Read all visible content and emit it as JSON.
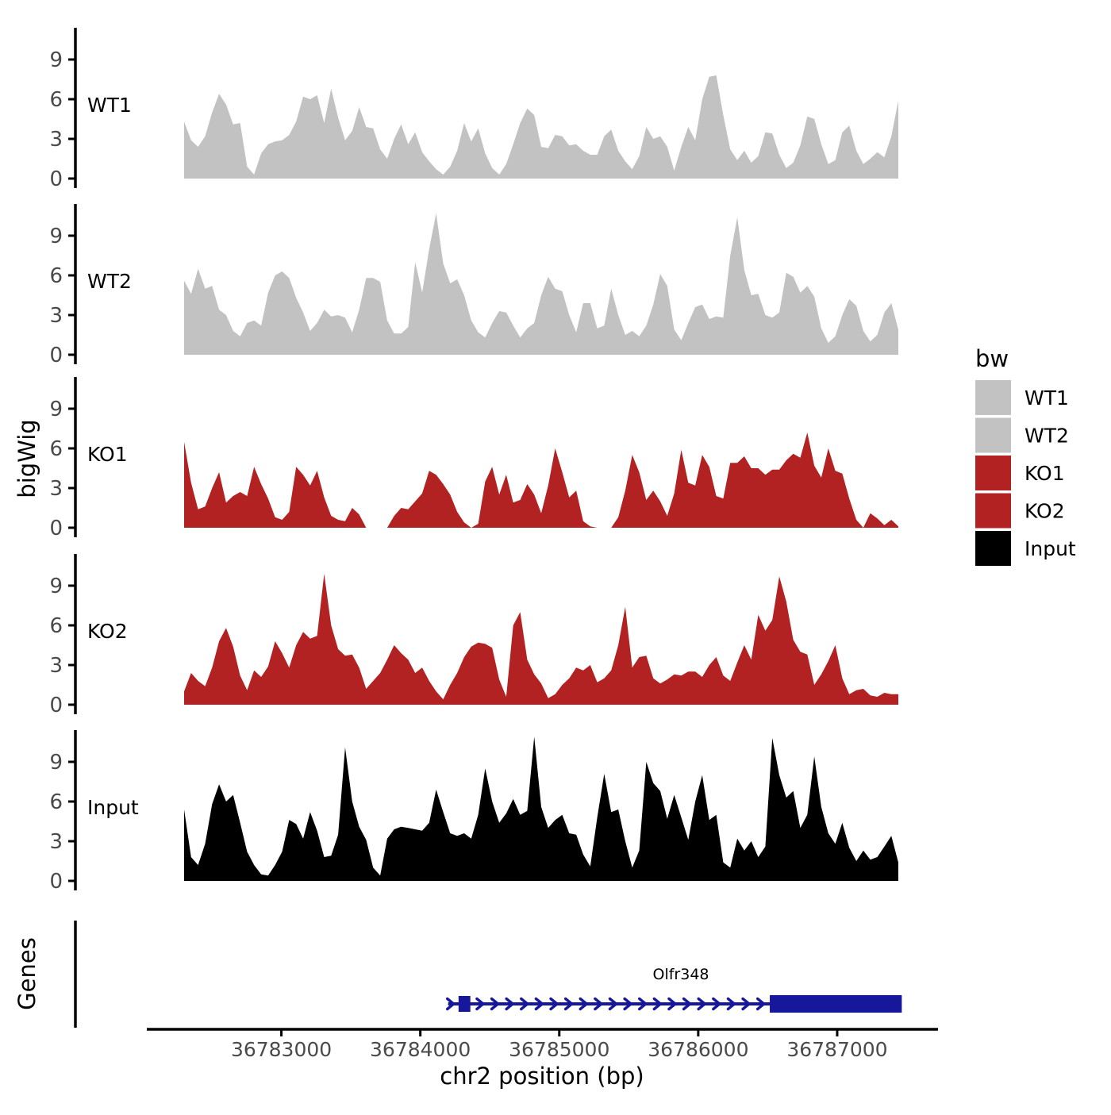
{
  "figure": {
    "y_axis_title": "bigWig",
    "genes_axis_title": "Genes",
    "x_axis_title": "chr2 position (bp)"
  },
  "legend": {
    "title": "bw",
    "entries": [
      {
        "label": "WT1",
        "color": "#C2C2C2"
      },
      {
        "label": "WT2",
        "color": "#C2C2C2"
      },
      {
        "label": "KO1",
        "color": "#B22222"
      },
      {
        "label": "KO2",
        "color": "#B22222"
      },
      {
        "label": "Input",
        "color": "#000000"
      }
    ]
  },
  "chart_data": {
    "type": "area",
    "title": "",
    "xlabel": "chr2 position (bp)",
    "ylabel": "bigWig",
    "grid": false,
    "legend_position": "right",
    "region": {
      "chrom": "chr2",
      "start_bp": 36782300,
      "end_bp": 36787440
    },
    "x_ticks": [
      {
        "bp": 36783000,
        "label": "36783000"
      },
      {
        "bp": 36784000,
        "label": "36784000"
      },
      {
        "bp": 36785000,
        "label": "36785000"
      },
      {
        "bp": 36786000,
        "label": "36786000"
      },
      {
        "bp": 36787000,
        "label": "36787000"
      }
    ],
    "y_ticks": [
      0,
      3,
      6,
      9
    ],
    "ylim": [
      0,
      11.4
    ],
    "series": [
      {
        "name": "WT1",
        "color": "#C2C2C2",
        "values": [
          4.3,
          2.9,
          2.4,
          3.2,
          5.0,
          6.4,
          5.6,
          4.1,
          4.2,
          0.9,
          0.3,
          1.9,
          2.6,
          2.8,
          2.9,
          3.3,
          4.3,
          6.2,
          6.0,
          6.3,
          4.2,
          6.8,
          4.6,
          2.9,
          3.6,
          5.4,
          3.9,
          3.8,
          2.2,
          1.5,
          3.0,
          4.1,
          2.6,
          3.5,
          2.0,
          1.3,
          0.7,
          0.3,
          0.9,
          2.1,
          4.2,
          2.8,
          3.8,
          1.9,
          0.8,
          0.3,
          1.1,
          2.6,
          4.2,
          5.3,
          4.8,
          2.4,
          2.3,
          3.3,
          3.2,
          2.5,
          2.6,
          2.1,
          1.8,
          1.8,
          3.2,
          3.7,
          2.1,
          1.3,
          0.7,
          1.7,
          3.9,
          3.0,
          3.2,
          2.4,
          0.6,
          2.4,
          3.9,
          2.9,
          6.0,
          7.7,
          7.8,
          4.8,
          2.2,
          1.4,
          2.1,
          1.2,
          1.7,
          3.5,
          3.4,
          1.8,
          0.8,
          1.2,
          2.5,
          4.7,
          4.5,
          2.6,
          1.1,
          1.4,
          3.5,
          4.0,
          2.1,
          1.1,
          1.5,
          2.0,
          1.6,
          3.2,
          5.9
        ]
      },
      {
        "name": "WT2",
        "color": "#C2C2C2",
        "values": [
          5.6,
          4.6,
          6.5,
          5.0,
          5.2,
          3.4,
          3.0,
          1.8,
          1.4,
          2.4,
          2.6,
          2.2,
          4.7,
          6.0,
          6.3,
          5.8,
          4.3,
          3.2,
          1.8,
          2.4,
          3.4,
          2.9,
          3.0,
          2.8,
          1.7,
          3.4,
          5.8,
          5.8,
          5.5,
          2.6,
          1.6,
          1.6,
          2.1,
          7.0,
          4.7,
          8.0,
          10.7,
          6.9,
          5.4,
          5.7,
          4.5,
          2.6,
          1.7,
          1.3,
          2.4,
          3.3,
          3.2,
          2.2,
          1.3,
          2.0,
          2.4,
          4.5,
          5.9,
          5.0,
          4.8,
          3.0,
          1.7,
          3.9,
          3.9,
          2.0,
          2.2,
          5.0,
          3.0,
          1.5,
          1.8,
          1.4,
          2.2,
          3.8,
          6.1,
          5.2,
          1.9,
          1.1,
          2.4,
          3.6,
          3.8,
          2.7,
          2.9,
          2.8,
          7.5,
          10.4,
          6.4,
          4.5,
          4.6,
          3.0,
          2.8,
          3.2,
          6.2,
          5.9,
          4.7,
          5.2,
          4.4,
          2.0,
          0.9,
          1.4,
          3.0,
          4.2,
          3.7,
          1.8,
          1.0,
          1.5,
          3.2,
          3.9,
          1.9
        ]
      },
      {
        "name": "KO1",
        "color": "#B22222",
        "values": [
          6.5,
          3.4,
          1.4,
          1.6,
          3.0,
          4.2,
          1.9,
          2.4,
          2.7,
          2.4,
          4.6,
          3.3,
          2.2,
          0.8,
          0.6,
          1.2,
          4.6,
          4.0,
          3.2,
          4.3,
          2.3,
          0.9,
          0.6,
          0.5,
          1.5,
          1.0,
          0,
          0,
          0,
          0,
          0.9,
          1.5,
          1.4,
          2.0,
          2.6,
          4.3,
          4.0,
          3.3,
          2.5,
          1.2,
          0.4,
          0,
          0.3,
          3.5,
          4.6,
          2.5,
          4.0,
          1.9,
          2.1,
          3.3,
          2.5,
          1.1,
          3.2,
          6.0,
          4.2,
          2.3,
          2.8,
          0.5,
          0.1,
          0,
          0,
          0,
          0.8,
          2.8,
          5.5,
          4.2,
          2.1,
          2.8,
          2.0,
          0.9,
          2.6,
          5.9,
          3.4,
          3.2,
          5.5,
          4.6,
          2.4,
          2.2,
          4.9,
          4.9,
          5.4,
          4.5,
          4.5,
          4.0,
          4.4,
          4.4,
          5.1,
          5.6,
          5.3,
          7.2,
          4.7,
          3.8,
          6.0,
          4.3,
          4.1,
          2.2,
          0.6,
          0,
          1.1,
          0.7,
          0.2,
          0.6,
          0.1
        ]
      },
      {
        "name": "KO2",
        "color": "#B22222",
        "values": [
          1.0,
          2.4,
          1.8,
          1.4,
          2.8,
          4.8,
          5.8,
          4.4,
          2.2,
          1.1,
          2.6,
          2.1,
          2.9,
          4.8,
          3.9,
          2.8,
          4.5,
          5.5,
          5.0,
          5.2,
          9.9,
          6.0,
          4.2,
          3.7,
          3.8,
          2.8,
          1.2,
          1.8,
          2.4,
          3.4,
          4.5,
          3.9,
          3.4,
          2.4,
          2.8,
          1.8,
          1.0,
          0.4,
          1.5,
          2.4,
          3.6,
          4.4,
          4.7,
          4.6,
          4.3,
          1.9,
          0.6,
          6.0,
          7.0,
          3.4,
          2.3,
          1.6,
          0.5,
          0.8,
          1.5,
          2.0,
          2.8,
          2.6,
          3.0,
          1.7,
          2.0,
          2.6,
          4.5,
          7.4,
          2.8,
          3.6,
          3.7,
          2.0,
          1.6,
          1.9,
          2.3,
          2.2,
          2.5,
          2.5,
          2.1,
          3.0,
          3.6,
          2.2,
          1.8,
          3.2,
          4.5,
          3.4,
          6.8,
          5.6,
          6.4,
          9.7,
          7.8,
          4.9,
          4.0,
          3.8,
          1.5,
          2.3,
          3.3,
          4.5,
          2.0,
          0.8,
          1.1,
          1.2,
          0.7,
          0.6,
          0.9,
          0.8,
          0.8
        ]
      },
      {
        "name": "Input",
        "color": "#000000",
        "values": [
          5.4,
          1.8,
          1.2,
          2.8,
          5.8,
          7.3,
          6.0,
          6.5,
          4.4,
          2.2,
          1.2,
          0.5,
          0.4,
          1.2,
          2.2,
          4.6,
          4.3,
          3.2,
          5.2,
          3.8,
          1.8,
          1.9,
          3.5,
          10.1,
          6.0,
          4.1,
          3.1,
          1.0,
          0.4,
          3.2,
          3.9,
          4.1,
          4.0,
          3.9,
          3.8,
          4.4,
          6.9,
          5.2,
          3.6,
          3.4,
          3.6,
          3.2,
          5.0,
          8.5,
          6.0,
          4.4,
          5.1,
          6.2,
          5.0,
          5.3,
          10.9,
          5.6,
          4.0,
          4.6,
          5.0,
          3.6,
          3.5,
          2.0,
          1.1,
          4.8,
          8.1,
          5.2,
          5.4,
          3.0,
          1.0,
          2.3,
          9.0,
          7.4,
          6.8,
          4.7,
          6.5,
          4.8,
          3.1,
          6.0,
          8.0,
          4.6,
          5.0,
          1.4,
          1.0,
          3.2,
          2.3,
          3.0,
          1.8,
          2.6,
          10.8,
          8.0,
          6.3,
          6.8,
          4.0,
          5.0,
          9.4,
          5.6,
          3.6,
          2.8,
          4.4,
          2.5,
          1.5,
          2.3,
          1.6,
          1.8,
          2.6,
          3.4,
          1.4
        ]
      }
    ],
    "gene_track": {
      "label": "Olfr348",
      "color": "#17179C",
      "strand": "+",
      "line_start_bp": 36784200,
      "line_end_bp": 36786530,
      "exons": [
        {
          "type": "thin",
          "start_bp": 36784275,
          "end_bp": 36784360
        },
        {
          "type": "thick",
          "start_bp": 36786515,
          "end_bp": 36787465
        }
      ]
    }
  }
}
